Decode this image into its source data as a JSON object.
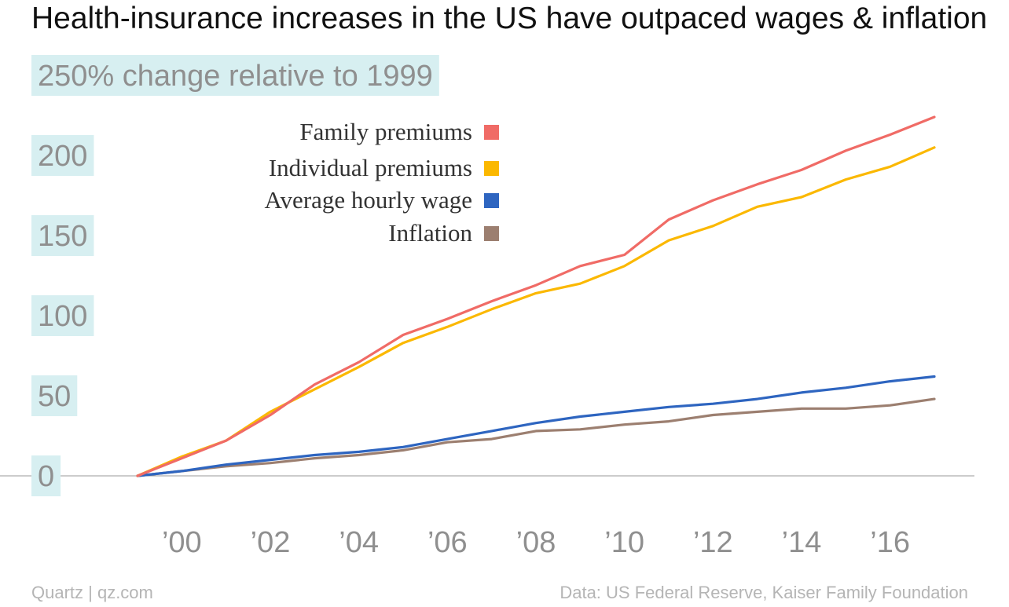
{
  "title": "Health-insurance increases in the US have outpaced wages & inflation",
  "source_left": "Quartz | qz.com",
  "source_right": "Data: US Federal Reserve, Kaiser Family Foundation",
  "colors": {
    "family": "#f06b66",
    "individual": "#fbb800",
    "wage": "#2e65c0",
    "inflation": "#9c7f70",
    "label_bg": "#d7eff1",
    "tick_text": "#8f8f8f",
    "zero_line": "#999999"
  },
  "chart_data": {
    "type": "line",
    "title": "Health-insurance increases in the US have outpaced wages & inflation",
    "ylabel": "change relative to 1999",
    "y_unit": "%",
    "ylim": [
      0,
      250
    ],
    "yticks": [
      0,
      50,
      100,
      150,
      200,
      250
    ],
    "ytick_labels": [
      "0",
      "50",
      "100",
      "150",
      "200",
      "250% change relative to 1999"
    ],
    "xlim": [
      1999,
      2017
    ],
    "xticks": [
      2000,
      2002,
      2004,
      2006,
      2008,
      2010,
      2012,
      2014,
      2016
    ],
    "xtick_labels": [
      "’00",
      "’02",
      "’04",
      "’06",
      "’08",
      "’10",
      "’12",
      "’14",
      "’16"
    ],
    "grid": false,
    "legend_position": "top-left",
    "x": [
      1999,
      2000,
      2001,
      2002,
      2003,
      2004,
      2005,
      2006,
      2007,
      2008,
      2009,
      2010,
      2011,
      2012,
      2013,
      2014,
      2015,
      2016,
      2017
    ],
    "series": [
      {
        "name": "Family premiums",
        "color_key": "family",
        "values": [
          0,
          11,
          22,
          38,
          57,
          71,
          88,
          98,
          109,
          119,
          131,
          138,
          160,
          172,
          182,
          191,
          203,
          213,
          224
        ]
      },
      {
        "name": "Individual premiums",
        "color_key": "individual",
        "values": [
          0,
          12,
          22,
          40,
          54,
          68,
          83,
          93,
          104,
          114,
          120,
          131,
          147,
          156,
          168,
          174,
          185,
          193,
          205
        ]
      },
      {
        "name": "Average hourly wage",
        "color_key": "wage",
        "values": [
          0,
          3,
          7,
          10,
          13,
          15,
          18,
          23,
          28,
          33,
          37,
          40,
          43,
          45,
          48,
          52,
          55,
          59,
          62
        ]
      },
      {
        "name": "Inflation",
        "color_key": "inflation",
        "values": [
          0,
          3,
          6,
          8,
          11,
          13,
          16,
          21,
          23,
          28,
          29,
          32,
          34,
          38,
          40,
          42,
          42,
          44,
          48
        ]
      }
    ]
  }
}
